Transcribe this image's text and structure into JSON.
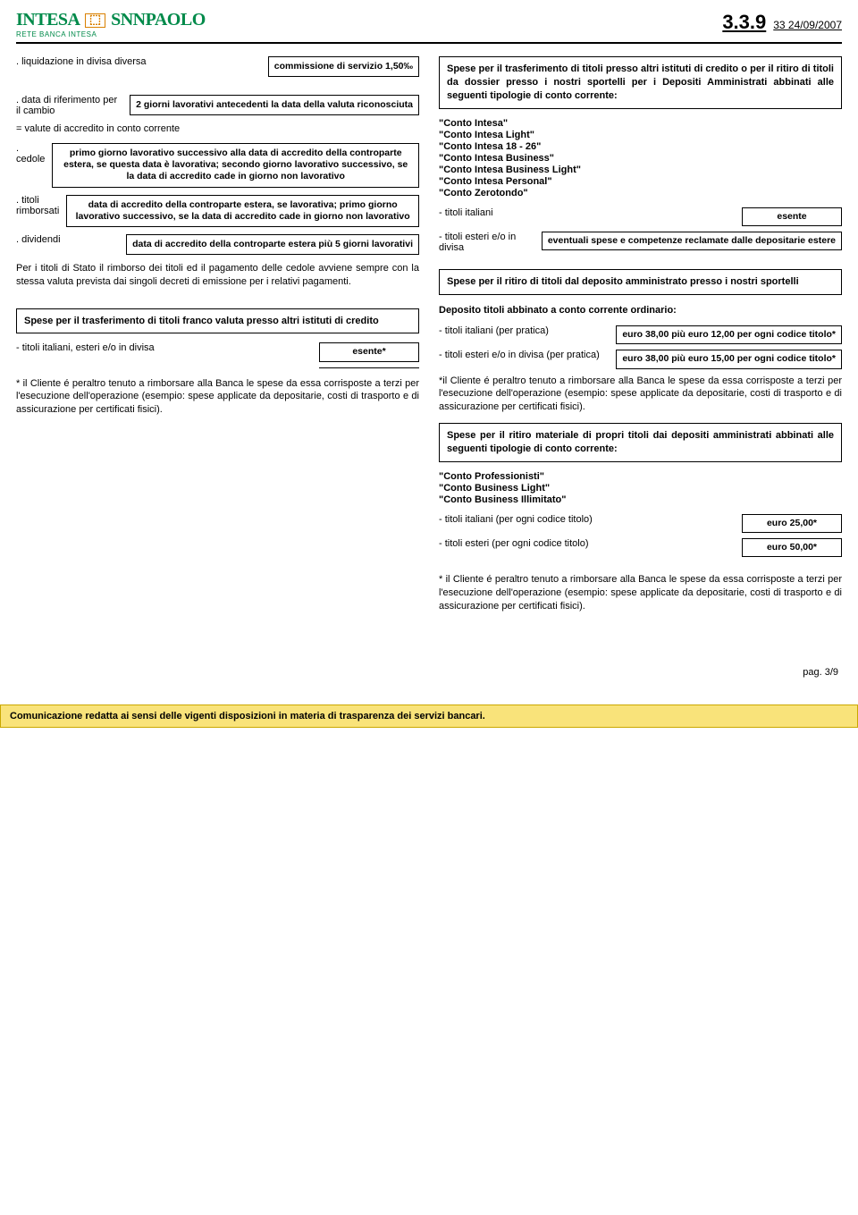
{
  "header": {
    "logo_main_left": "INTESA",
    "logo_main_right": "SNNPAOLO",
    "logo_sub": "RETE BANCA INTESA",
    "doc_num": "3.3.9",
    "doc_meta": "33  24/09/2007"
  },
  "left": {
    "liquidazione_label": ". liquidazione in divisa diversa",
    "liquidazione_val": "commissione di servizio 1,50‰",
    "data_rif_label": ". data di riferimento per il cambio",
    "data_rif_val": "2 giorni lavorativi antecedenti la data della valuta riconosciuta",
    "valute_accredito": "= valute di accredito in conto corrente",
    "cedole_label": ". cedole",
    "cedole_val": "primo giorno lavorativo successivo alla data di accredito della controparte estera, se questa data è lavorativa; secondo giorno lavorativo successivo, se la data di accredito cade in giorno non lavorativo",
    "titoli_rimb_label": ". titoli rimborsati",
    "titoli_rimb_val": "data di accredito della controparte estera, se lavorativa; primo giorno lavorativo successivo, se la data di accredito cade in giorno non lavorativo",
    "dividendi_label": ". dividendi",
    "dividendi_val": "data di accredito della controparte estera più 5 giorni lavorativi",
    "stato_note": "Per i titoli di Stato il rimborso dei titoli ed il pagamento delle cedole avviene sempre con la stessa valuta prevista dai singoli decreti di emissione per i relativi pagamenti.",
    "spese_trasf_box": "Spese per il trasferimento di titoli franco valuta presso altri istituti di credito",
    "titoli_it_est_label": "- titoli italiani, esteri e/o in divisa",
    "titoli_it_est_val": "esente*",
    "cliente_note": "* il Cliente é peraltro tenuto a rimborsare alla Banca le spese da essa corrisposte a terzi per l'esecuzione dell'operazione (esempio: spese applicate da depositarie, costi di trasporto e di assicurazione per certificati fisici)."
  },
  "right": {
    "spese_trasf_intro": "Spese per il trasferimento di titoli presso altri istituti di credito o per il ritiro di titoli da dossier presso i nostri sportelli per i Depositi Amministrati abbinati alle seguenti tipologie di conto corrente:",
    "conti_list": [
      "\"Conto Intesa\"",
      "\"Conto Intesa Light\"",
      "\"Conto Intesa 18 - 26\"",
      "\"Conto Intesa Business\"",
      "\"Conto Intesa Business Light\"",
      "\"Conto Intesa Personal\"",
      "\"Conto Zerotondo\""
    ],
    "titoli_it_label": "- titoli italiani",
    "titoli_it_val": "esente",
    "titoli_est_label": "- titoli esteri e/o in divisa",
    "titoli_est_val": "eventuali spese e competenze reclamate dalle depositarie estere",
    "spese_ritiro_box": "Spese per il ritiro di titoli dal deposito amministrato presso i nostri sportelli",
    "deposito_ord": "Deposito titoli abbinato a conto corrente ordinario:",
    "titoli_it_pp_label": "- titoli italiani (per pratica)",
    "titoli_it_pp_val": "euro 38,00 più euro 12,00 per ogni codice titolo*",
    "titoli_est_pp_label": "- titoli esteri e/o in divisa (per pratica)",
    "titoli_est_pp_val": "euro 38,00 più euro 15,00 per ogni codice titolo*",
    "cliente_note1": "*il Cliente é peraltro tenuto a rimborsare alla Banca le spese da essa corrisposte a terzi per l'esecuzione dell'operazione (esempio: spese applicate da depositarie, costi di trasporto e di assicurazione per certificati fisici).",
    "spese_ritiro_mat_box": "Spese per il ritiro materiale di propri titoli dai depositi amministrati abbinati alle seguenti tipologie di conto corrente:",
    "conti_list2": [
      "\"Conto Professionisti\"",
      "\"Conto Business Light\"",
      "\"Conto Business Illimitato\""
    ],
    "titoli_it_cod_label": "- titoli italiani (per ogni codice titolo)",
    "titoli_it_cod_val": "euro 25,00*",
    "titoli_est_cod_label": "- titoli esteri (per ogni codice titolo)",
    "titoli_est_cod_val": "euro 50,00*",
    "cliente_note2": "* il Cliente é peraltro tenuto a rimborsare alla Banca le spese da essa corrisposte a terzi per l'esecuzione dell'operazione (esempio: spese applicate da depositarie, costi di trasporto e di assicurazione per certificati fisici)."
  },
  "footer": {
    "page_num": "pag. 3/9",
    "bar": "Comunicazione redatta ai sensi delle vigenti disposizioni in materia di trasparenza dei servizi bancari."
  }
}
